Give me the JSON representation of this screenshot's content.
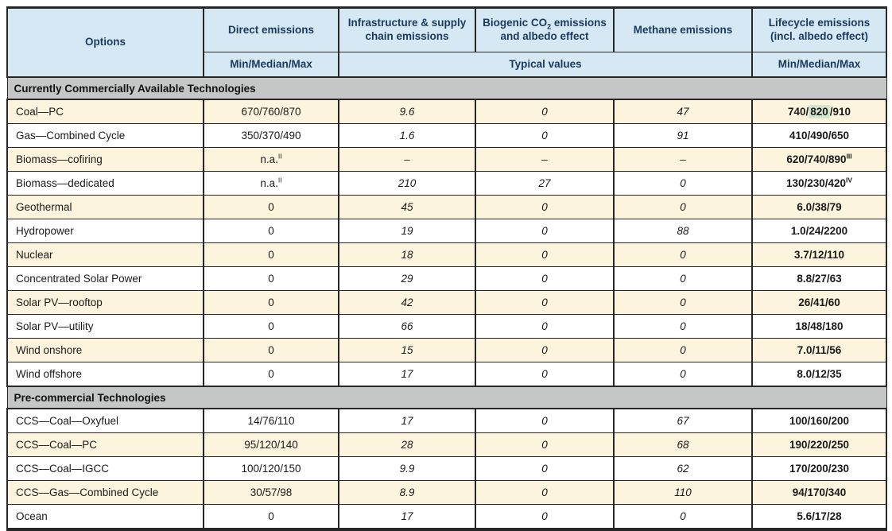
{
  "table": {
    "header": {
      "options": "Options",
      "direct": "Direct emissions",
      "direct_sub": "Min/Median/Max",
      "infrastructure": "Infrastructure & supply chain emissions",
      "biogenic_pre": "Biogenic CO",
      "biogenic_sub": "2",
      "biogenic_post": " emissions and albedo effect",
      "methane": "Methane emissions",
      "lifecycle": "Lifecycle emissions (incl. albedo effect)",
      "lifecycle_sub": "Min/Median/Max",
      "typical_values": "Typical values"
    },
    "colors": {
      "header_bg": "#d5e8f3",
      "header_text": "#1a3a5e",
      "section_bg": "#c5c6c6",
      "row_shaded_bg": "#fdf4dd",
      "row_plain_bg": "#ffffff",
      "highlight_bg": "#d3e5cd",
      "border": "#272727"
    },
    "sections": [
      {
        "title": "Currently Commercially Available Technologies",
        "first_row_shaded": true,
        "rows": [
          {
            "option": "Coal—PC",
            "direct": "670/760/870",
            "infra": "9.6",
            "biogenic": "0",
            "methane": "47",
            "lifecycle": "740/820/910",
            "lifecycle_highlight": "820"
          },
          {
            "option": "Gas—Combined Cycle",
            "direct": "350/370/490",
            "infra": "1.6",
            "biogenic": "0",
            "methane": "91",
            "lifecycle": "410/490/650"
          },
          {
            "option": "Biomass—cofiring",
            "direct": "n.a.",
            "direct_sup": "II",
            "infra": "–",
            "biogenic": "–",
            "methane": "–",
            "lifecycle": "620/740/890",
            "lifecycle_sup": "III"
          },
          {
            "option": "Biomass—dedicated",
            "direct": "n.a.",
            "direct_sup": "II",
            "infra": "210",
            "biogenic": "27",
            "methane": "0",
            "lifecycle": "130/230/420",
            "lifecycle_sup": "IV"
          },
          {
            "option": "Geothermal",
            "direct": "0",
            "infra": "45",
            "biogenic": "0",
            "methane": "0",
            "lifecycle": "6.0/38/79"
          },
          {
            "option": "Hydropower",
            "direct": "0",
            "infra": "19",
            "biogenic": "0",
            "methane": "88",
            "lifecycle": "1.0/24/2200"
          },
          {
            "option": "Nuclear",
            "direct": "0",
            "infra": "18",
            "biogenic": "0",
            "methane": "0",
            "lifecycle": "3.7/12/110"
          },
          {
            "option": "Concentrated Solar Power",
            "direct": "0",
            "infra": "29",
            "biogenic": "0",
            "methane": "0",
            "lifecycle": "8.8/27/63"
          },
          {
            "option": "Solar PV—rooftop",
            "direct": "0",
            "infra": "42",
            "biogenic": "0",
            "methane": "0",
            "lifecycle": "26/41/60"
          },
          {
            "option": "Solar PV—utility",
            "direct": "0",
            "infra": "66",
            "biogenic": "0",
            "methane": "0",
            "lifecycle": "18/48/180"
          },
          {
            "option": "Wind onshore",
            "direct": "0",
            "infra": "15",
            "biogenic": "0",
            "methane": "0",
            "lifecycle": "7.0/11/56"
          },
          {
            "option": "Wind offshore",
            "direct": "0",
            "infra": "17",
            "biogenic": "0",
            "methane": "0",
            "lifecycle": "8.0/12/35"
          }
        ]
      },
      {
        "title": "Pre-commercial Technologies",
        "first_row_shaded": false,
        "rows": [
          {
            "option": "CCS—Coal—Oxyfuel",
            "direct": "14/76/110",
            "infra": "17",
            "biogenic": "0",
            "methane": "67",
            "lifecycle": "100/160/200"
          },
          {
            "option": "CCS—Coal—PC",
            "direct": "95/120/140",
            "infra": "28",
            "biogenic": "0",
            "methane": "68",
            "lifecycle": "190/220/250"
          },
          {
            "option": "CCS—Coal—IGCC",
            "direct": "100/120/150",
            "infra": "9.9",
            "biogenic": "0",
            "methane": "62",
            "lifecycle": "170/200/230"
          },
          {
            "option": "CCS—Gas—Combined Cycle",
            "direct": "30/57/98",
            "infra": "8.9",
            "biogenic": "0",
            "methane": "110",
            "lifecycle": "94/170/340"
          },
          {
            "option": "Ocean",
            "direct": "0",
            "infra": "17",
            "biogenic": "0",
            "methane": "0",
            "lifecycle": "5.6/17/28"
          }
        ]
      }
    ]
  }
}
